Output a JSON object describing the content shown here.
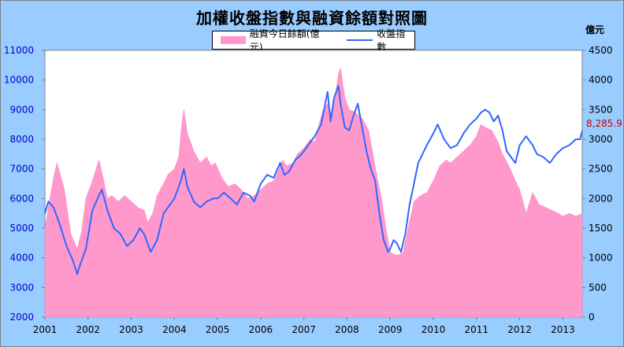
{
  "chart_data": {
    "type": "area+line",
    "title": "加權收盤指數與融資餘額對照圖",
    "right_unit": "億元",
    "legend": [
      {
        "name": "融資今日餘額(億元)",
        "color": "#ff99cc"
      },
      {
        "name": "收盤指數",
        "color": "#3366ff"
      }
    ],
    "x_ticks": [
      "2001",
      "2002",
      "2003",
      "2004",
      "2005",
      "2006",
      "2007",
      "2008",
      "2009",
      "2010",
      "2011",
      "2012",
      "2013"
    ],
    "left_axis": {
      "ticks": [
        2000,
        3000,
        4000,
        5000,
        6000,
        7000,
        8000,
        9000,
        10000,
        11000
      ],
      "ylim": [
        2000,
        11000
      ]
    },
    "right_axis": {
      "ticks": [
        0,
        500,
        1000,
        1500,
        2000,
        2500,
        3000,
        3500,
        4000,
        4500
      ],
      "ylim": [
        0,
        4500
      ]
    },
    "annotation": {
      "text": "8,285.9",
      "value": 8285.9,
      "color": "#cc0000"
    },
    "xlim": [
      2001.0,
      2013.45
    ],
    "series": [
      {
        "name": "融資今日餘額(億元)",
        "axis": "right",
        "x": [
          2001.0,
          2001.08,
          2001.2,
          2001.28,
          2001.45,
          2001.6,
          2001.75,
          2001.85,
          2001.95,
          2002.1,
          2002.25,
          2002.32,
          2002.45,
          2002.55,
          2002.7,
          2002.85,
          2003.0,
          2003.15,
          2003.3,
          2003.38,
          2003.5,
          2003.6,
          2003.75,
          2003.85,
          2004.0,
          2004.1,
          2004.18,
          2004.22,
          2004.3,
          2004.45,
          2004.6,
          2004.75,
          2004.85,
          2004.95,
          2005.1,
          2005.25,
          2005.4,
          2005.55,
          2005.7,
          2005.85,
          2006.0,
          2006.15,
          2006.3,
          2006.4,
          2006.5,
          2006.6,
          2006.75,
          2006.85,
          2007.0,
          2007.15,
          2007.25,
          2007.35,
          2007.45,
          2007.55,
          2007.65,
          2007.75,
          2007.8,
          2007.85,
          2007.95,
          2008.05,
          2008.2,
          2008.35,
          2008.5,
          2008.6,
          2008.7,
          2008.8,
          2008.9,
          2009.0,
          2009.1,
          2009.2,
          2009.3,
          2009.4,
          2009.55,
          2009.7,
          2009.85,
          2010.0,
          2010.15,
          2010.3,
          2010.4,
          2010.55,
          2010.7,
          2010.85,
          2011.0,
          2011.1,
          2011.2,
          2011.35,
          2011.5,
          2011.6,
          2011.75,
          2011.9,
          2012.0,
          2012.15,
          2012.3,
          2012.45,
          2012.6,
          2012.75,
          2012.9,
          2013.0,
          2013.15,
          2013.3,
          2013.45
        ],
        "values": [
          1500,
          1850,
          2350,
          2600,
          2150,
          1400,
          1150,
          1450,
          2000,
          2300,
          2650,
          2450,
          2000,
          2050,
          1950,
          2050,
          1950,
          1850,
          1800,
          1600,
          1750,
          2050,
          2250,
          2400,
          2500,
          2700,
          3300,
          3500,
          3100,
          2800,
          2600,
          2700,
          2550,
          2600,
          2350,
          2200,
          2250,
          2150,
          2000,
          2050,
          2150,
          2250,
          2300,
          2450,
          2650,
          2550,
          2600,
          2750,
          2850,
          3000,
          2950,
          3250,
          3500,
          3600,
          3400,
          3850,
          4100,
          4200,
          3700,
          3500,
          3450,
          3350,
          3150,
          2750,
          2350,
          2000,
          1500,
          1100,
          1050,
          1050,
          1100,
          1450,
          1950,
          2050,
          2100,
          2300,
          2550,
          2650,
          2600,
          2700,
          2800,
          2900,
          3050,
          3250,
          3200,
          3150,
          2950,
          2750,
          2550,
          2300,
          2150,
          1750,
          2100,
          1900,
          1850,
          1800,
          1750,
          1700,
          1750,
          1700,
          1750
        ]
      },
      {
        "name": "收盤指數",
        "axis": "left",
        "x": [
          2001.0,
          2001.08,
          2001.2,
          2001.35,
          2001.5,
          2001.65,
          2001.75,
          2001.8,
          2001.95,
          2002.1,
          2002.25,
          2002.32,
          2002.45,
          2002.6,
          2002.75,
          2002.9,
          2003.05,
          2003.2,
          2003.3,
          2003.45,
          2003.6,
          2003.75,
          2003.9,
          2004.0,
          2004.15,
          2004.22,
          2004.3,
          2004.45,
          2004.6,
          2004.75,
          2004.9,
          2005.0,
          2005.15,
          2005.3,
          2005.45,
          2005.6,
          2005.75,
          2005.85,
          2006.0,
          2006.15,
          2006.3,
          2006.45,
          2006.55,
          2006.65,
          2006.8,
          2006.95,
          2007.1,
          2007.25,
          2007.4,
          2007.55,
          2007.62,
          2007.7,
          2007.8,
          2007.85,
          2007.95,
          2008.05,
          2008.15,
          2008.25,
          2008.35,
          2008.45,
          2008.55,
          2008.65,
          2008.75,
          2008.85,
          2008.95,
          2009.0,
          2009.08,
          2009.15,
          2009.25,
          2009.35,
          2009.45,
          2009.55,
          2009.65,
          2009.75,
          2009.85,
          2010.0,
          2010.1,
          2010.25,
          2010.4,
          2010.55,
          2010.7,
          2010.85,
          2011.0,
          2011.1,
          2011.2,
          2011.3,
          2011.4,
          2011.5,
          2011.6,
          2011.7,
          2011.8,
          2011.9,
          2012.0,
          2012.15,
          2012.3,
          2012.4,
          2012.55,
          2012.7,
          2012.85,
          2013.0,
          2013.15,
          2013.3,
          2013.4,
          2013.45
        ],
        "values": [
          5500,
          5900,
          5700,
          5100,
          4400,
          3900,
          3450,
          3700,
          4300,
          5600,
          6100,
          6300,
          5600,
          5000,
          4800,
          4400,
          4600,
          5000,
          4800,
          4200,
          4600,
          5500,
          5800,
          6000,
          6600,
          7000,
          6400,
          5900,
          5700,
          5900,
          6000,
          6000,
          6200,
          6000,
          5800,
          6200,
          6100,
          5900,
          6500,
          6800,
          6700,
          7200,
          6800,
          6900,
          7300,
          7500,
          7800,
          8100,
          8500,
          9600,
          8600,
          9400,
          9800,
          9200,
          8400,
          8300,
          8800,
          9200,
          8400,
          7600,
          7000,
          6600,
          5500,
          4600,
          4200,
          4300,
          4600,
          4500,
          4200,
          4800,
          5800,
          6500,
          7200,
          7500,
          7800,
          8200,
          8500,
          8000,
          7700,
          7800,
          8200,
          8500,
          8700,
          8900,
          9000,
          8900,
          8600,
          8800,
          8300,
          7600,
          7400,
          7200,
          7800,
          8100,
          7800,
          7500,
          7400,
          7200,
          7500,
          7700,
          7800,
          8000,
          8000,
          8285.9
        ]
      }
    ]
  }
}
